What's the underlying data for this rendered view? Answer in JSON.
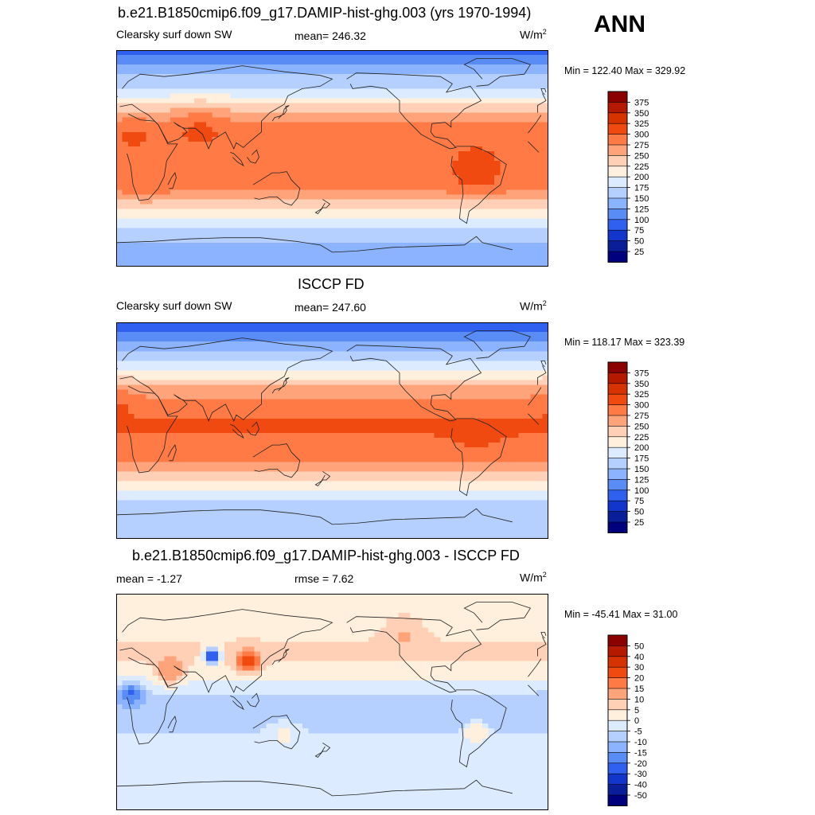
{
  "season_label": "ANN",
  "units_base": "W/m",
  "units_exp": "2",
  "chart_data": [
    {
      "type": "heatmap",
      "title": "b.e21.B1850cmip6.f09_g17.DAMIP-hist-ghg.003 (yrs 1970-1994)",
      "variable": "Clearsky surf down SW",
      "mean_text": "mean= 246.32",
      "minmax_text": "Min = 122.40 Max = 329.92",
      "colorbar": {
        "levels": [
          "375",
          "350",
          "325",
          "300",
          "275",
          "250",
          "225",
          "200",
          "175",
          "150",
          "125",
          "100",
          "75",
          "50",
          "25"
        ],
        "colors": [
          "#8b0000",
          "#b51a00",
          "#d63300",
          "#f04a10",
          "#ff7a45",
          "#ffa37a",
          "#ffd0b5",
          "#fff0de",
          "#dcebff",
          "#b5d0ff",
          "#8cb3ff",
          "#5a8cf5",
          "#2f60f0",
          "#1235cc",
          "#0a1e9a",
          "#00007f"
        ]
      },
      "field": {
        "min": 122.4,
        "max": 329.92,
        "lat_profile": [
          {
            "lat": 90,
            "v": 80
          },
          {
            "lat": 75,
            "v": 135
          },
          {
            "lat": 60,
            "v": 170
          },
          {
            "lat": 50,
            "v": 205
          },
          {
            "lat": 40,
            "v": 245
          },
          {
            "lat": 30,
            "v": 275
          },
          {
            "lat": 20,
            "v": 290
          },
          {
            "lat": 0,
            "v": 292
          },
          {
            "lat": -20,
            "v": 290
          },
          {
            "lat": -30,
            "v": 270
          },
          {
            "lat": -40,
            "v": 230
          },
          {
            "lat": -50,
            "v": 195
          },
          {
            "lat": -60,
            "v": 165
          },
          {
            "lat": -70,
            "v": 150
          },
          {
            "lat": -90,
            "v": 145
          }
        ],
        "anomalies": [
          {
            "lon": 70,
            "lat": 32,
            "r": 20,
            "v": 25
          },
          {
            "lon": 15,
            "lat": 22,
            "r": 15,
            "v": 15
          },
          {
            "lon": 25,
            "lat": -22,
            "r": 15,
            "v": 10
          },
          {
            "lon": 300,
            "lat": -10,
            "r": 18,
            "v": 25
          }
        ]
      }
    },
    {
      "type": "heatmap",
      "title": "ISCCP FD",
      "variable": "Clearsky surf down SW",
      "mean_text": "mean= 247.60",
      "minmax_text": "Min = 118.17 Max = 323.39",
      "colorbar": {
        "levels": [
          "375",
          "350",
          "325",
          "300",
          "275",
          "250",
          "225",
          "200",
          "175",
          "150",
          "125",
          "100",
          "75",
          "50",
          "25"
        ],
        "colors": [
          "#8b0000",
          "#b51a00",
          "#d63300",
          "#f04a10",
          "#ff7a45",
          "#ffa37a",
          "#ffd0b5",
          "#fff0de",
          "#dcebff",
          "#b5d0ff",
          "#8cb3ff",
          "#5a8cf5",
          "#2f60f0",
          "#1235cc",
          "#0a1e9a",
          "#00007f"
        ]
      },
      "field": {
        "min": 118.17,
        "max": 323.39,
        "lat_profile": [
          {
            "lat": 90,
            "v": 80
          },
          {
            "lat": 75,
            "v": 125
          },
          {
            "lat": 60,
            "v": 165
          },
          {
            "lat": 50,
            "v": 200
          },
          {
            "lat": 40,
            "v": 240
          },
          {
            "lat": 30,
            "v": 270
          },
          {
            "lat": 20,
            "v": 285
          },
          {
            "lat": 8,
            "v": 302
          },
          {
            "lat": 0,
            "v": 303
          },
          {
            "lat": -10,
            "v": 295
          },
          {
            "lat": -20,
            "v": 285
          },
          {
            "lat": -30,
            "v": 265
          },
          {
            "lat": -40,
            "v": 230
          },
          {
            "lat": -50,
            "v": 195
          },
          {
            "lat": -60,
            "v": 170
          },
          {
            "lat": -70,
            "v": 155
          },
          {
            "lat": -90,
            "v": 150
          }
        ],
        "anomalies": [
          {
            "lon": 5,
            "lat": 25,
            "r": 12,
            "v": 20
          },
          {
            "lon": 300,
            "lat": -10,
            "r": 18,
            "v": 10
          }
        ]
      }
    },
    {
      "type": "heatmap",
      "title": "b.e21.B1850cmip6.f09_g17.DAMIP-hist-ghg.003 - ISCCP FD",
      "mean_text": "mean =  -1.27",
      "rmse_text": "rmse =   7.62",
      "minmax_text": "Min = -45.41 Max =  31.00",
      "colorbar": {
        "levels": [
          "50",
          "40",
          "30",
          "20",
          "15",
          "10",
          "5",
          "0",
          "-5",
          "-10",
          "-15",
          "-20",
          "-30",
          "-40",
          "-50"
        ],
        "colors": [
          "#8b0000",
          "#b51a00",
          "#d63300",
          "#f04a10",
          "#ff7a45",
          "#ffa37a",
          "#ffd0b5",
          "#fff0de",
          "#dcebff",
          "#b5d0ff",
          "#8cb3ff",
          "#5a8cf5",
          "#2f60f0",
          "#1235cc",
          "#0a1e9a",
          "#00007f"
        ]
      },
      "field": {
        "min": -45.41,
        "max": 31.0,
        "lat_profile": [
          {
            "lat": 90,
            "v": 3
          },
          {
            "lat": 60,
            "v": 4
          },
          {
            "lat": 40,
            "v": 6
          },
          {
            "lat": 25,
            "v": 3
          },
          {
            "lat": 15,
            "v": -2
          },
          {
            "lat": 0,
            "v": -8
          },
          {
            "lat": -15,
            "v": -8
          },
          {
            "lat": -30,
            "v": -4
          },
          {
            "lat": -45,
            "v": -3
          },
          {
            "lat": -60,
            "v": -3
          },
          {
            "lat": -90,
            "v": -3
          }
        ],
        "anomalies": [
          {
            "lon": 80,
            "lat": 38,
            "r": 6,
            "v": -45
          },
          {
            "lon": 110,
            "lat": 34,
            "r": 10,
            "v": 20
          },
          {
            "lon": 45,
            "lat": 25,
            "r": 12,
            "v": 12
          },
          {
            "lon": 12,
            "lat": 8,
            "r": 10,
            "v": -16
          },
          {
            "lon": 140,
            "lat": -25,
            "r": 12,
            "v": 6
          },
          {
            "lon": 300,
            "lat": -25,
            "r": 10,
            "v": 10
          },
          {
            "lon": 240,
            "lat": 55,
            "r": 15,
            "v": 6
          }
        ]
      }
    }
  ]
}
